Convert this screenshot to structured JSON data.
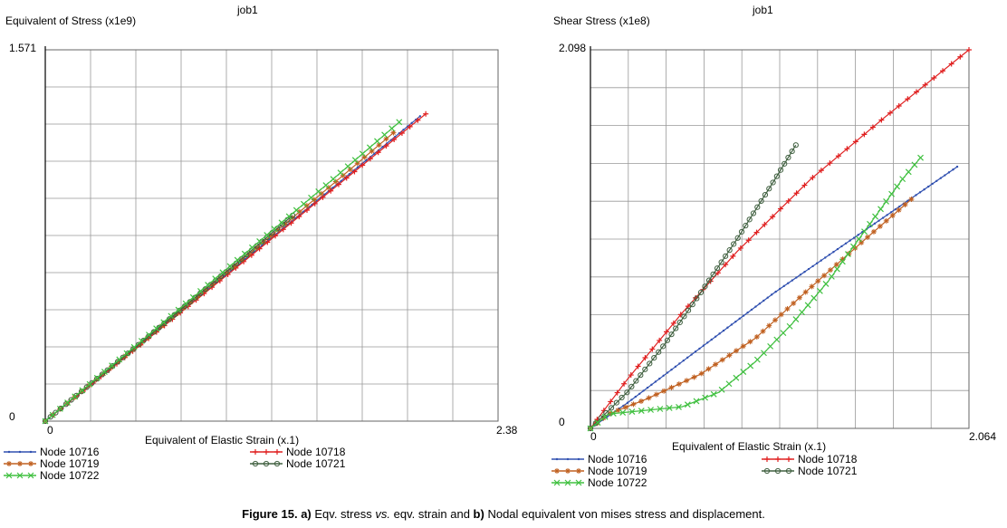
{
  "chart_data": [
    {
      "id": "a",
      "type": "line",
      "title": "job1",
      "ylabel": "Equivalent of Stress (x1e9)",
      "xlabel": "Equivalent of Elastic Strain (x.1)",
      "xlim": [
        0,
        2.38
      ],
      "ylim": [
        0,
        1.571
      ],
      "x_tick_labels": [
        "0",
        "2.38"
      ],
      "y_tick_labels": [
        "0",
        "1.571"
      ],
      "grid": true,
      "legend": "bottom",
      "series": [
        {
          "name": "Node 10716",
          "color": "#3050b0",
          "marker": "dot",
          "points": [
            [
              0,
              0
            ],
            [
              0.5,
              0.325
            ],
            [
              1.0,
              0.652
            ],
            [
              1.5,
              0.98
            ],
            [
              1.97,
              1.29
            ]
          ]
        },
        {
          "name": "Node 10718",
          "color": "#e02020",
          "marker": "plus",
          "points": [
            [
              0,
              0
            ],
            [
              0.5,
              0.322
            ],
            [
              1.0,
              0.647
            ],
            [
              1.5,
              0.974
            ],
            [
              2.0,
              1.3
            ]
          ]
        },
        {
          "name": "Node 10719",
          "color": "#c06020",
          "marker": "asterisk",
          "points": [
            [
              0,
              0
            ],
            [
              0.5,
              0.328
            ],
            [
              1.0,
              0.66
            ],
            [
              1.5,
              0.995
            ],
            [
              1.83,
              1.22
            ]
          ]
        },
        {
          "name": "Node 10721",
          "color": "#406040",
          "marker": "circle",
          "points": [
            [
              0,
              0
            ],
            [
              0.5,
              0.33
            ],
            [
              1.0,
              0.665
            ],
            [
              1.3,
              0.87
            ]
          ]
        },
        {
          "name": "Node 10722",
          "color": "#40c040",
          "marker": "x",
          "points": [
            [
              0,
              0
            ],
            [
              0.5,
              0.335
            ],
            [
              1.0,
              0.675
            ],
            [
              1.5,
              1.015
            ],
            [
              1.86,
              1.265
            ]
          ]
        }
      ]
    },
    {
      "id": "b",
      "type": "line",
      "title": "job1",
      "ylabel": "Shear Stress (x1e8)",
      "xlabel": "Equivalent of Elastic Strain (x.1)",
      "xlim": [
        0,
        2.064
      ],
      "ylim": [
        0,
        2.098
      ],
      "x_tick_labels": [
        "0",
        "2.064"
      ],
      "y_tick_labels": [
        "0",
        "2.098"
      ],
      "grid": true,
      "legend": "bottom",
      "series": [
        {
          "name": "Node 10716",
          "color": "#3050b0",
          "marker": "dot",
          "points": [
            [
              0,
              0
            ],
            [
              0.2,
              0.14
            ],
            [
              0.5,
              0.37
            ],
            [
              1.0,
              0.75
            ],
            [
              1.5,
              1.1
            ],
            [
              2.0,
              1.45
            ]
          ]
        },
        {
          "name": "Node 10718",
          "color": "#e02020",
          "marker": "plus",
          "points": [
            [
              0,
              0
            ],
            [
              0.2,
              0.27
            ],
            [
              0.5,
              0.64
            ],
            [
              0.8,
              0.98
            ],
            [
              1.2,
              1.38
            ],
            [
              1.6,
              1.72
            ],
            [
              2.064,
              2.098
            ]
          ]
        },
        {
          "name": "Node 10719",
          "color": "#c06020",
          "marker": "asterisk",
          "points": [
            [
              0,
              0
            ],
            [
              0.1,
              0.08
            ],
            [
              0.3,
              0.16
            ],
            [
              0.6,
              0.3
            ],
            [
              0.9,
              0.5
            ],
            [
              1.2,
              0.78
            ],
            [
              1.5,
              1.05
            ],
            [
              1.75,
              1.27
            ]
          ]
        },
        {
          "name": "Node 10721",
          "color": "#406040",
          "marker": "circle",
          "points": [
            [
              0,
              0
            ],
            [
              0.2,
              0.2
            ],
            [
              0.4,
              0.46
            ],
            [
              0.6,
              0.75
            ],
            [
              0.8,
              1.05
            ],
            [
              1.0,
              1.37
            ],
            [
              1.12,
              1.57
            ]
          ]
        },
        {
          "name": "Node 10722",
          "color": "#40c040",
          "marker": "x",
          "points": [
            [
              0,
              0
            ],
            [
              0.1,
              0.08
            ],
            [
              0.3,
              0.1
            ],
            [
              0.5,
              0.12
            ],
            [
              0.7,
              0.2
            ],
            [
              0.9,
              0.37
            ],
            [
              1.1,
              0.58
            ],
            [
              1.3,
              0.82
            ],
            [
              1.5,
              1.1
            ],
            [
              1.7,
              1.38
            ],
            [
              1.8,
              1.5
            ]
          ]
        }
      ]
    }
  ],
  "caption": {
    "label": "Figure 15.",
    "part_a": "a)",
    "text_a": "Eqv. stress",
    "vs": "vs.",
    "text_a2": "eqv. strain and",
    "part_b": "b)",
    "text_b": "Nodal equivalent von mises stress and displacement."
  }
}
